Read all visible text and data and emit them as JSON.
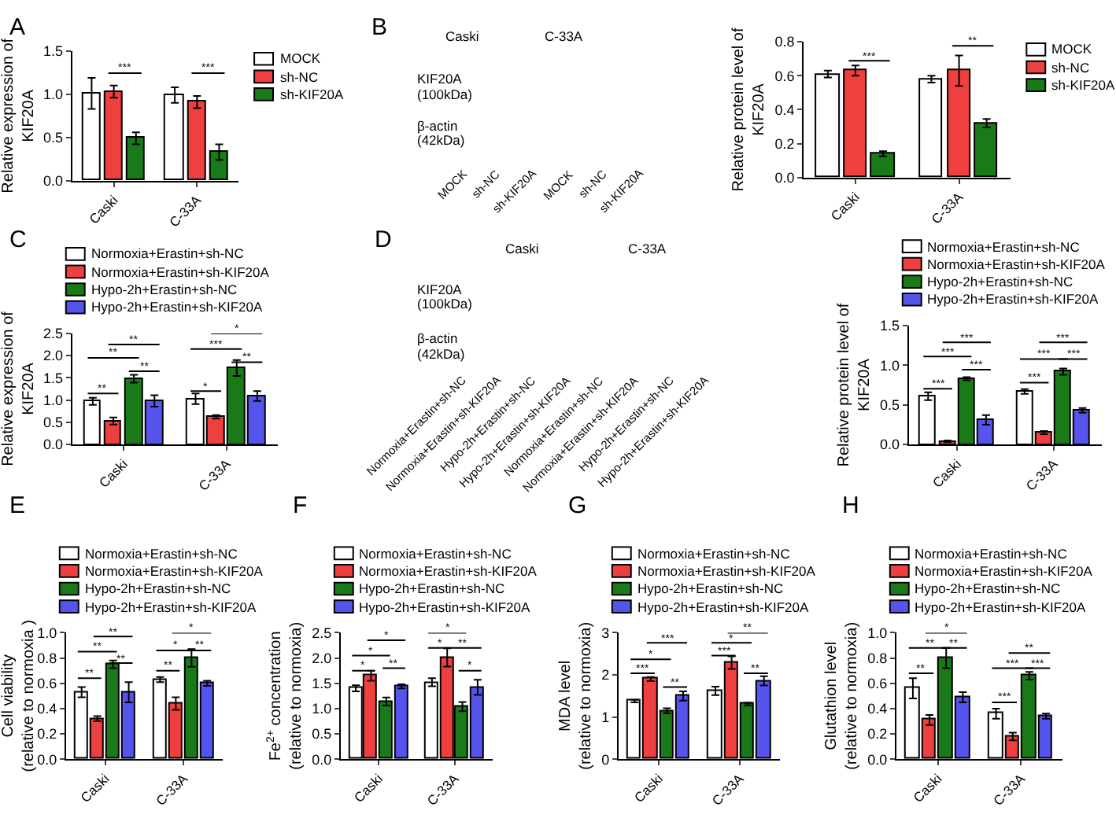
{
  "chart_data": [
    {
      "type": "bar",
      "title": "A",
      "categories": [
        "Caski",
        "C-33A"
      ],
      "ylabel": "Relative expression of\nKIF20A",
      "ylim": [
        0,
        1.5
      ],
      "yticks": [
        {
          "value": 0,
          "label": "0.0"
        },
        0.5,
        {
          "value": 1,
          "label": "1.0"
        },
        1.5
      ],
      "legend": "right",
      "series": [
        {
          "name": "MOCK",
          "color": "#ffffff",
          "values": [
            1.01,
            0.99
          ],
          "errors": [
            0.18,
            0.09
          ]
        },
        {
          "name": "sh-NC",
          "color": "#ef4040",
          "values": [
            1.03,
            0.91
          ],
          "errors": [
            0.07,
            0.07
          ]
        },
        {
          "name": "sh-KIF20A",
          "color": "#1a7a1a",
          "values": [
            0.49,
            0.33
          ],
          "errors": [
            0.07,
            0.09
          ]
        }
      ],
      "annotations": [
        "***",
        "***"
      ]
    },
    {
      "type": "other",
      "title": "B",
      "annotations": [
        "Caski",
        "C-33A",
        "KIF20A",
        "(100kDa)",
        "β-actin",
        "(42kDa)",
        "MOCK",
        "sh-NC",
        "sh-KIF20A",
        "MOCK",
        "sh-NC",
        "sh-KIF20A"
      ]
    },
    {
      "type": "bar",
      "categories": [
        "Caski",
        "C-33A"
      ],
      "ylabel": "Relative protein level of\nKIF20A",
      "ylim": [
        0,
        0.8
      ],
      "yticks": [
        {
          "value": 0,
          "label": "0.0"
        },
        0.2,
        0.4,
        0.6,
        0.8
      ],
      "legend": "right",
      "series": [
        {
          "name": "MOCK",
          "color": "#ffffff",
          "values": [
            0.61,
            0.58
          ],
          "errors": [
            0.02,
            0.02
          ]
        },
        {
          "name": "sh-NC",
          "color": "#ef4040",
          "values": [
            0.63,
            0.63
          ],
          "errors": [
            0.03,
            0.09
          ]
        },
        {
          "name": "sh-KIF20A",
          "color": "#1a7a1a",
          "values": [
            0.14,
            0.32
          ],
          "errors": [
            0.015,
            0.025
          ]
        }
      ],
      "annotations": [
        "***",
        "**"
      ]
    },
    {
      "type": "bar",
      "title": "C",
      "categories": [
        "Caski",
        "C-33A"
      ],
      "ylabel": "Relative expression of\nKIF20A",
      "ylim": [
        0,
        2.5
      ],
      "yticks": [
        {
          "value": 0,
          "label": "0.0"
        },
        0.5,
        {
          "value": 1,
          "label": "1.0"
        },
        1.5,
        {
          "value": 2,
          "label": "2.0"
        },
        2.5
      ],
      "legend": "top",
      "series": [
        {
          "name": "Normoxia+Erastin+sh-NC",
          "color": "#ffffff",
          "values": [
            0.97,
            1.03
          ],
          "errors": [
            0.08,
            0.12
          ]
        },
        {
          "name": "Normoxia+Erastin+sh-KIF20A",
          "color": "#ef4040",
          "values": [
            0.53,
            0.62
          ],
          "errors": [
            0.08,
            0.04
          ]
        },
        {
          "name": "Hypo-2h+Erastin+sh-NC",
          "color": "#1a7a1a",
          "values": [
            1.48,
            1.72
          ],
          "errors": [
            0.09,
            0.18
          ]
        },
        {
          "name": "Hypo-2h+Erastin+sh-KIF20A",
          "color": "#5555ee",
          "values": [
            0.98,
            1.09
          ],
          "errors": [
            0.13,
            0.11
          ]
        }
      ],
      "annotations": [
        "**",
        "**",
        "**",
        "**",
        "*",
        "***",
        "*",
        "**"
      ]
    },
    {
      "type": "other",
      "title": "D",
      "annotations": [
        "Caski",
        "C-33A",
        "KIF20A",
        "(100kDa)",
        "β-actin",
        "(42kDa)",
        "Normoxia+Erastin+sh-NC",
        "Normoxia+Erastin+sh-KIF20A",
        "Hypo-2h+Erastin+sh-NC",
        "Hypo-2h+Erastin+sh-KIF20A",
        "Normoxia+Erastin+sh-NC",
        "Normoxia+Erastin+sh-KIF20A",
        "Hypo-2h+Erastin+sh-NC",
        "Hypo-2h+Erastin+sh-KIF20A"
      ]
    },
    {
      "type": "bar",
      "categories": [
        "Caski",
        "C-33A"
      ],
      "ylabel": "Relative protein level of\nKIF20A",
      "ylim": [
        0,
        1.5
      ],
      "yticks": [
        {
          "value": 0,
          "label": "0.0"
        },
        0.5,
        {
          "value": 1,
          "label": "1.0"
        },
        1.5
      ],
      "legend": "top",
      "series": [
        {
          "name": "Normoxia+Erastin+sh-NC",
          "color": "#ffffff",
          "values": [
            0.61,
            0.67
          ],
          "errors": [
            0.05,
            0.03
          ]
        },
        {
          "name": "Normoxia+Erastin+sh-KIF20A",
          "color": "#ef4040",
          "values": [
            0.04,
            0.15
          ],
          "errors": [
            0.01,
            0.02
          ]
        },
        {
          "name": "Hypo-2h+Erastin+sh-NC",
          "color": "#1a7a1a",
          "values": [
            0.83,
            0.92
          ],
          "errors": [
            0.02,
            0.04
          ]
        },
        {
          "name": "Hypo-2h+Erastin+sh-KIF20A",
          "color": "#5555ee",
          "values": [
            0.31,
            0.43
          ],
          "errors": [
            0.06,
            0.03
          ]
        }
      ],
      "annotations": [
        "***",
        "***",
        "***",
        "***",
        "***",
        "***",
        "***",
        "***"
      ]
    },
    {
      "type": "bar",
      "title": "E",
      "categories": [
        "Caski",
        "C-33A"
      ],
      "ylabel": "Cell viability\n(relative to normoxia )",
      "ylim": [
        0,
        1
      ],
      "yticks": [
        {
          "value": 0,
          "label": "0.0"
        },
        0.2,
        0.4,
        0.6,
        0.8,
        {
          "value": 1,
          "label": "1.0"
        }
      ],
      "legend": "top",
      "series": [
        {
          "name": "Normoxia+Erastin+sh-NC",
          "color": "#ffffff",
          "values": [
            0.53,
            0.63
          ],
          "errors": [
            0.04,
            0.02
          ]
        },
        {
          "name": "Normoxia+Erastin+sh-KIF20A",
          "color": "#ef4040",
          "values": [
            0.32,
            0.44
          ],
          "errors": [
            0.02,
            0.05
          ]
        },
        {
          "name": "Hypo-2h+Erastin+sh-NC",
          "color": "#1a7a1a",
          "values": [
            0.75,
            0.8
          ],
          "errors": [
            0.03,
            0.07
          ]
        },
        {
          "name": "Hypo-2h+Erastin+sh-KIF20A",
          "color": "#5555ee",
          "values": [
            0.53,
            0.6
          ],
          "errors": [
            0.08,
            0.02
          ]
        }
      ],
      "annotations": [
        "**",
        "**",
        "**",
        "**",
        "**",
        "*",
        "*",
        "**"
      ]
    },
    {
      "type": "bar",
      "title": "F",
      "categories": [
        "Caski",
        "C-33A"
      ],
      "ylabel": "Fe$^{2+}$ concentration\n(relative to normoxia)",
      "ylim": [
        0,
        2.5
      ],
      "yticks": [
        {
          "value": 0,
          "label": "0.0"
        },
        0.5,
        {
          "value": 1,
          "label": "1.0"
        },
        1.5,
        {
          "value": 2,
          "label": "2.0"
        },
        2.5
      ],
      "legend": "top",
      "series": [
        {
          "name": "Normoxia+Erastin+sh-NC",
          "color": "#ffffff",
          "values": [
            1.4,
            1.52
          ],
          "errors": [
            0.06,
            0.08
          ]
        },
        {
          "name": "Normoxia+Erastin+sh-KIF20A",
          "color": "#ef4040",
          "values": [
            1.65,
            2.01
          ],
          "errors": [
            0.1,
            0.18
          ]
        },
        {
          "name": "Hypo-2h+Erastin+sh-NC",
          "color": "#1a7a1a",
          "values": [
            1.14,
            1.04
          ],
          "errors": [
            0.08,
            0.09
          ]
        },
        {
          "name": "Hypo-2h+Erastin+sh-KIF20A",
          "color": "#5555ee",
          "values": [
            1.44,
            1.42
          ],
          "errors": [
            0.04,
            0.15
          ]
        }
      ],
      "annotations": [
        "*",
        "*",
        "*",
        "**",
        "*",
        "*",
        "**",
        "*"
      ]
    },
    {
      "type": "bar",
      "title": "G",
      "categories": [
        "Caski",
        "C-33A"
      ],
      "ylabel": "MDA level\n(relative to normoxia)",
      "ylim": [
        0,
        3
      ],
      "yticks": [
        0,
        1,
        2,
        3
      ],
      "legend": "top",
      "series": [
        {
          "name": "Normoxia+Erastin+sh-NC",
          "color": "#ffffff",
          "values": [
            1.38,
            1.62
          ],
          "errors": [
            0.03,
            0.1
          ]
        },
        {
          "name": "Normoxia+Erastin+sh-KIF20A",
          "color": "#ef4040",
          "values": [
            1.9,
            2.29
          ],
          "errors": [
            0.05,
            0.15
          ]
        },
        {
          "name": "Hypo-2h+Erastin+sh-NC",
          "color": "#1a7a1a",
          "values": [
            1.15,
            1.31
          ],
          "errors": [
            0.06,
            0.03
          ]
        },
        {
          "name": "Hypo-2h+Erastin+sh-KIF20A",
          "color": "#5555ee",
          "values": [
            1.5,
            1.86
          ],
          "errors": [
            0.11,
            0.11
          ]
        }
      ],
      "annotations": [
        "***",
        "*",
        "***",
        "**",
        "***",
        "*",
        "**",
        "**"
      ]
    },
    {
      "type": "bar",
      "title": "H",
      "categories": [
        "Caski",
        "C-33A"
      ],
      "ylabel": "Glutathion level\n(relative to normoxia)",
      "ylim": [
        0,
        1
      ],
      "yticks": [
        {
          "value": 0,
          "label": "0.0"
        },
        0.2,
        0.4,
        0.6,
        0.8,
        {
          "value": 1,
          "label": "1.0"
        }
      ],
      "legend": "top",
      "series": [
        {
          "name": "Normoxia+Erastin+sh-NC",
          "color": "#ffffff",
          "values": [
            0.56,
            0.36
          ],
          "errors": [
            0.08,
            0.04
          ]
        },
        {
          "name": "Normoxia+Erastin+sh-KIF20A",
          "color": "#ef4040",
          "values": [
            0.31,
            0.18
          ],
          "errors": [
            0.04,
            0.03
          ]
        },
        {
          "name": "Hypo-2h+Erastin+sh-NC",
          "color": "#1a7a1a",
          "values": [
            0.8,
            0.66
          ],
          "errors": [
            0.08,
            0.03
          ]
        },
        {
          "name": "Hypo-2h+Erastin+sh-KIF20A",
          "color": "#5555ee",
          "values": [
            0.49,
            0.34
          ],
          "errors": [
            0.04,
            0.02
          ]
        }
      ],
      "annotations": [
        "**",
        "**",
        "*",
        "**",
        "***",
        "***",
        "**",
        "***"
      ]
    }
  ]
}
